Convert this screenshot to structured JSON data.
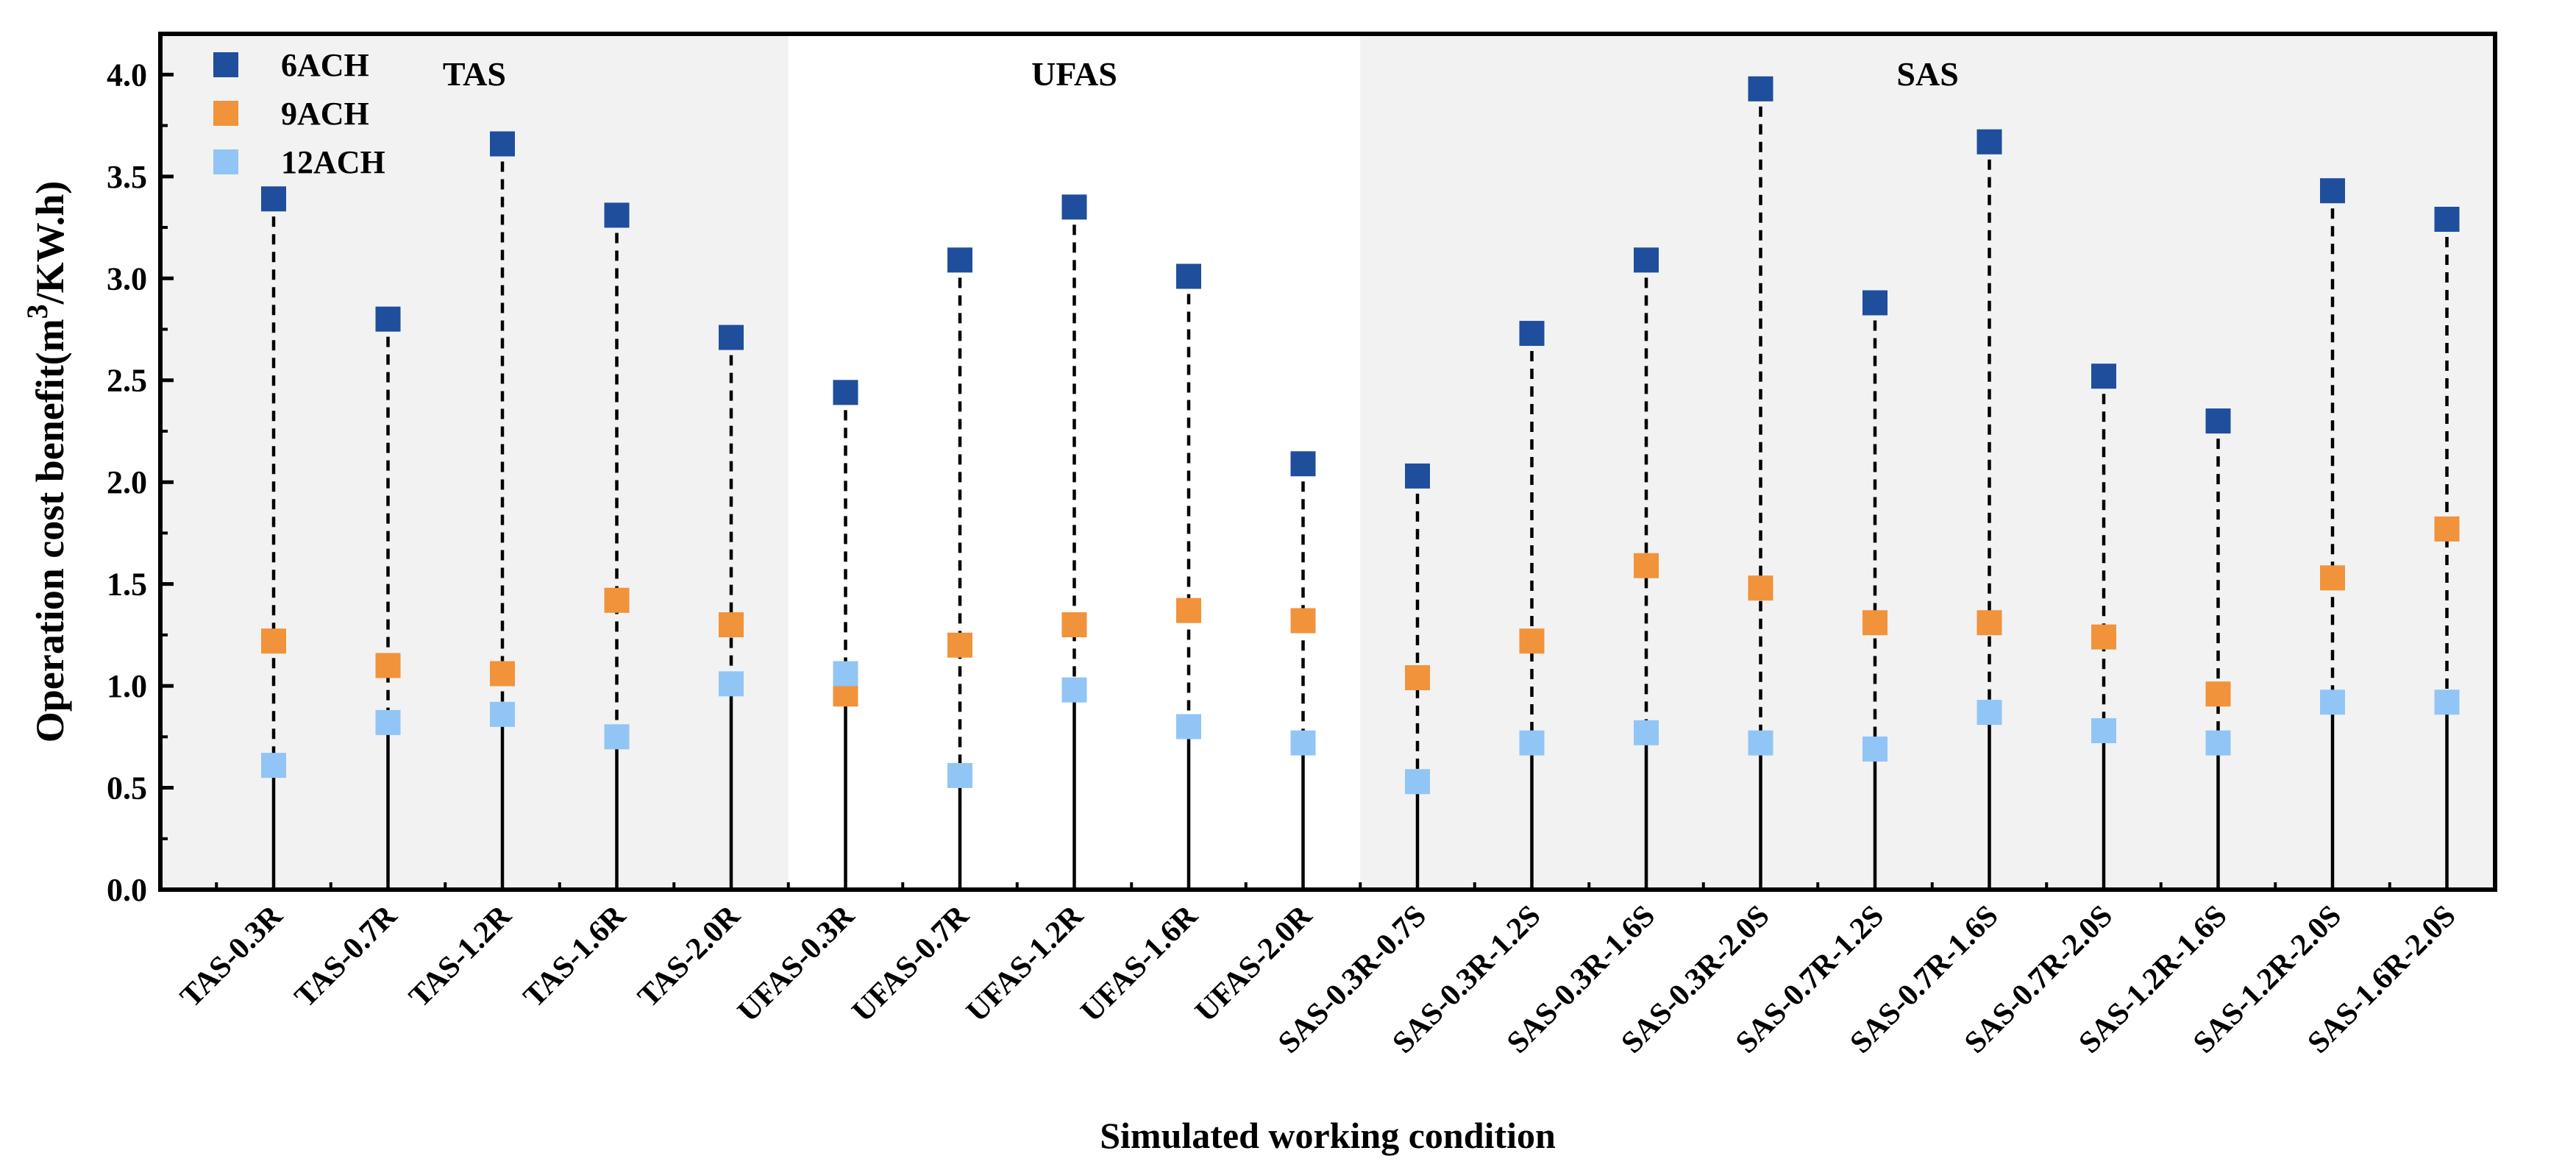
{
  "chart_data": {
    "type": "scatter",
    "title": "",
    "xlabel": "Simulated working condition",
    "ylabel_main": "Operation cost benefit(m",
    "ylabel_sup": "3",
    "ylabel_tail": "/KW.h)",
    "ylim": [
      0,
      4.2
    ],
    "yticks": [
      "0.0",
      "0.5",
      "1.0",
      "1.5",
      "2.0",
      "2.5",
      "3.0",
      "3.5",
      "4.0"
    ],
    "ytick_values": [
      0,
      0.5,
      1.0,
      1.5,
      2.0,
      2.5,
      3.0,
      3.5,
      4.0
    ],
    "categories": [
      "TAS-0.3R",
      "TAS-0.7R",
      "TAS-1.2R",
      "TAS-1.6R",
      "TAS-2.0R",
      "UFAS-0.3R",
      "UFAS-0.7R",
      "UFAS-1.2R",
      "UFAS-1.6R",
      "UFAS-2.0R",
      "SAS-0.3R-0.7S",
      "SAS-0.3R-1.2S",
      "SAS-0.3R-1.6S",
      "SAS-0.3R-2.0S",
      "SAS-0.7R-1.2S",
      "SAS-0.7R-1.6S",
      "SAS-0.7R-2.0S",
      "SAS-1.2R-1.6S",
      "SAS-1.2R-2.0S",
      "SAS-1.6R-2.0S"
    ],
    "series": [
      {
        "name": "6ACH",
        "color": "#1f4e9c",
        "values": [
          3.39,
          2.8,
          3.66,
          3.31,
          2.71,
          2.44,
          3.09,
          3.35,
          3.01,
          2.09,
          2.03,
          2.73,
          3.09,
          3.93,
          2.88,
          3.67,
          2.52,
          2.3,
          3.43,
          3.29
        ]
      },
      {
        "name": "9ACH",
        "color": "#f0933b",
        "values": [
          1.22,
          1.1,
          1.06,
          1.42,
          1.3,
          0.96,
          1.2,
          1.3,
          1.37,
          1.32,
          1.04,
          1.22,
          1.59,
          1.48,
          1.31,
          1.31,
          1.24,
          0.96,
          1.53,
          1.77
        ]
      },
      {
        "name": "12ACH",
        "color": "#91c5f5",
        "values": [
          0.61,
          0.82,
          0.86,
          0.75,
          1.01,
          1.06,
          0.56,
          0.98,
          0.8,
          0.72,
          0.53,
          0.72,
          0.77,
          0.72,
          0.69,
          0.87,
          0.78,
          0.72,
          0.92,
          0.92
        ]
      }
    ],
    "regions": [
      {
        "label": "TAS",
        "start": 0,
        "end": 4,
        "shaded": true
      },
      {
        "label": "UFAS",
        "start": 5,
        "end": 9,
        "shaded": false
      },
      {
        "label": "SAS",
        "start": 10,
        "end": 19,
        "shaded": true
      }
    ],
    "legend_position": "top-left",
    "shade_color": "#f2f2f2"
  }
}
